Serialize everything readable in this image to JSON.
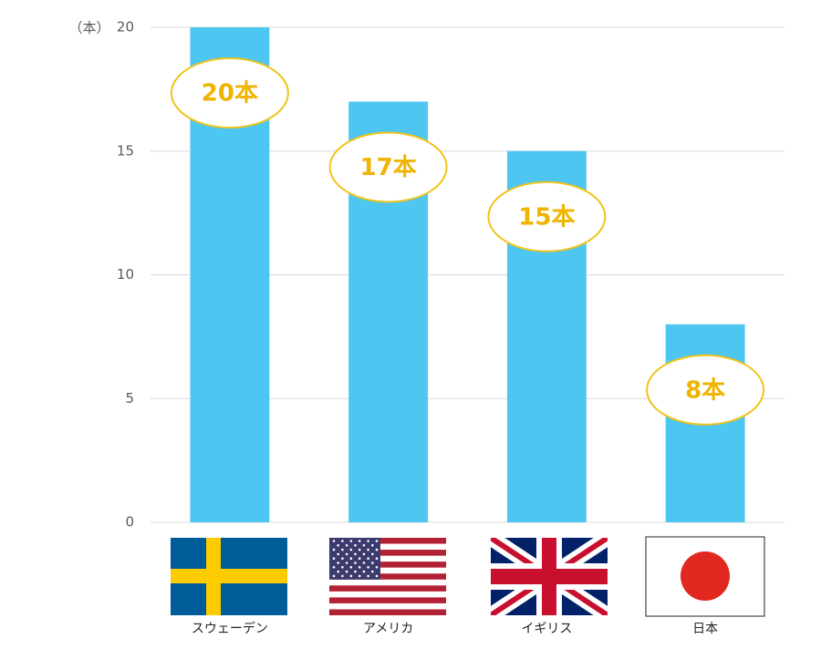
{
  "chart_data": {
    "type": "bar",
    "y_label": "（本）",
    "categories": [
      "スウェーデン",
      "アメリカ",
      "イギリス",
      "日本"
    ],
    "values": [
      20,
      17,
      15,
      8
    ],
    "value_labels": [
      "20本",
      "17本",
      "15本",
      "8本"
    ],
    "color": "#4dc7f2",
    "ylim": [
      0,
      20
    ],
    "yticks": [
      0,
      5,
      10,
      15,
      20
    ],
    "grid": true
  }
}
